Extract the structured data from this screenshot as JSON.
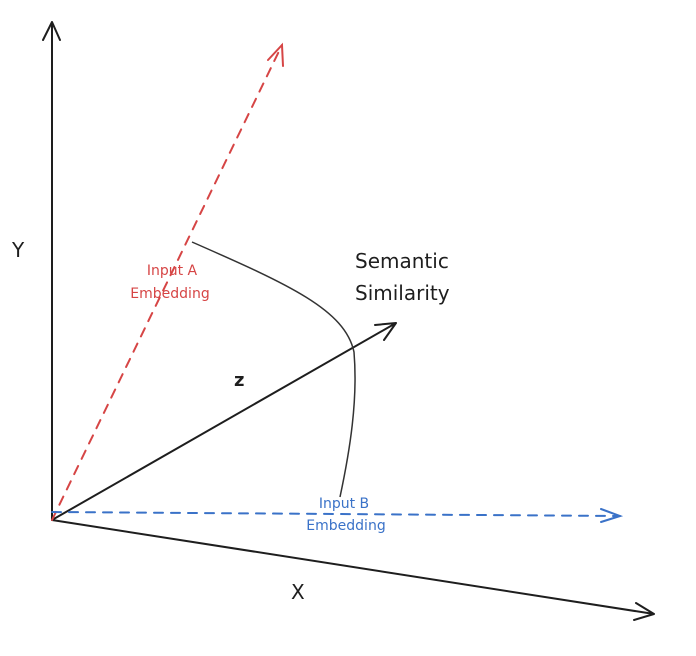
{
  "axes": {
    "y_label": "Y",
    "x_label": "X",
    "z_label": "z"
  },
  "vectors": {
    "a": {
      "line1": "Input A",
      "line2": "Embedding",
      "color": "#d64545"
    },
    "b": {
      "line1": "Input B",
      "line2": "Embedding",
      "color": "#3a72c8"
    }
  },
  "similarity": {
    "line1": "Semantic",
    "line2": "Similarity"
  },
  "colors": {
    "ink": "#1e1e1e"
  }
}
